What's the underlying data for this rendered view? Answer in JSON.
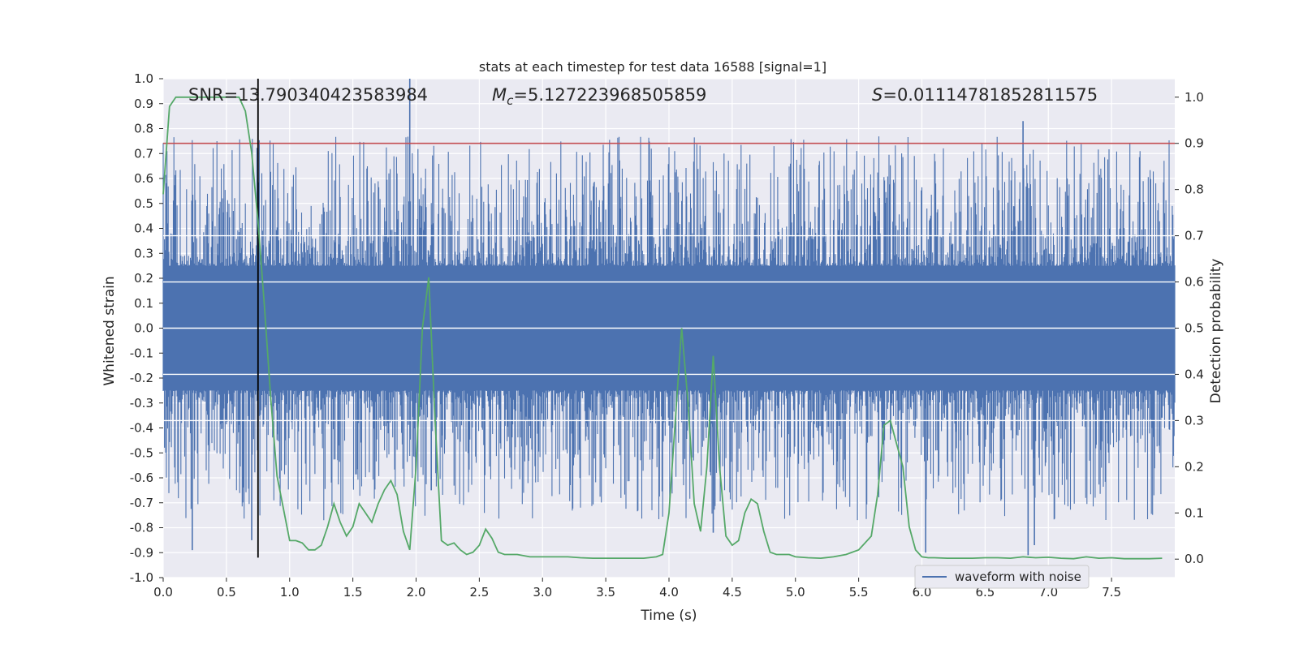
{
  "chart_data": {
    "type": "line",
    "title": "stats at each timestep for test data 16588 [signal=1]",
    "xlabel": "Time (s)",
    "ylabel_left": "Whitened strain",
    "ylabel_right": "Detection probability",
    "xlim": [
      0.0,
      8.0
    ],
    "ylim_left": [
      -1.0,
      1.0
    ],
    "ylim_right": [
      -0.04,
      1.04
    ],
    "x_ticks": [
      "0.0",
      "0.5",
      "1.0",
      "1.5",
      "2.0",
      "2.5",
      "3.0",
      "3.5",
      "4.0",
      "4.5",
      "5.0",
      "5.5",
      "6.0",
      "6.5",
      "7.0",
      "7.5"
    ],
    "y_ticks_left": [
      "-1.0",
      "-0.9",
      "-0.8",
      "-0.7",
      "-0.6",
      "-0.5",
      "-0.4",
      "-0.3",
      "-0.2",
      "-0.1",
      "0.0",
      "0.1",
      "0.2",
      "0.3",
      "0.4",
      "0.5",
      "0.6",
      "0.7",
      "0.8",
      "0.9",
      "1.0"
    ],
    "y_ticks_right": [
      "0.0",
      "0.1",
      "0.2",
      "0.3",
      "0.4",
      "0.5",
      "0.6",
      "0.7",
      "0.8",
      "0.9",
      "1.0"
    ],
    "grid": true,
    "legend": {
      "position": "bottom-right",
      "entries": [
        {
          "label": "waveform with noise",
          "color": "#4c72b0"
        }
      ]
    },
    "annotations": {
      "snr": "SNR=13.790340423583984",
      "mc_symbol": "M",
      "mc_sub": "c",
      "mc_value": "=5.127223968505859",
      "s_symbol": "S",
      "s_value": "=0.01114781852811575"
    },
    "series": [
      {
        "name": "waveform with noise",
        "axis": "left",
        "color": "#4c72b0",
        "sample_rate": 2048,
        "amplitude_band": [
          -0.35,
          0.35
        ],
        "notable_peaks": [
          {
            "x": 1.95,
            "y": 1.0
          },
          {
            "x": 6.8,
            "y": 0.83
          },
          {
            "x": 0.23,
            "y": -0.89
          },
          {
            "x": 6.84,
            "y": -0.91
          },
          {
            "x": 6.89,
            "y": -0.87
          },
          {
            "x": 6.03,
            "y": -0.9
          },
          {
            "x": 4.35,
            "y": -0.82
          },
          {
            "x": 2.12,
            "y": -0.65
          },
          {
            "x": 0.7,
            "y": -0.85
          }
        ]
      },
      {
        "name": "",
        "axis": "right",
        "color": "#55a868",
        "x": [
          0.0,
          0.05,
          0.1,
          0.15,
          0.2,
          0.25,
          0.3,
          0.35,
          0.4,
          0.45,
          0.5,
          0.55,
          0.6,
          0.65,
          0.7,
          0.75,
          0.8,
          0.85,
          0.9,
          0.95,
          1.0,
          1.05,
          1.1,
          1.15,
          1.2,
          1.25,
          1.3,
          1.35,
          1.4,
          1.45,
          1.5,
          1.55,
          1.6,
          1.65,
          1.7,
          1.75,
          1.8,
          1.85,
          1.9,
          1.95,
          2.0,
          2.05,
          2.1,
          2.15,
          2.2,
          2.25,
          2.3,
          2.35,
          2.4,
          2.45,
          2.5,
          2.55,
          2.6,
          2.65,
          2.7,
          2.75,
          2.8,
          2.9,
          3.0,
          3.1,
          3.2,
          3.3,
          3.4,
          3.5,
          3.6,
          3.7,
          3.8,
          3.9,
          3.95,
          4.0,
          4.05,
          4.1,
          4.15,
          4.2,
          4.25,
          4.3,
          4.35,
          4.4,
          4.45,
          4.5,
          4.55,
          4.6,
          4.65,
          4.7,
          4.75,
          4.8,
          4.85,
          4.9,
          4.95,
          5.0,
          5.1,
          5.2,
          5.3,
          5.4,
          5.5,
          5.6,
          5.65,
          5.7,
          5.75,
          5.8,
          5.85,
          5.9,
          5.95,
          6.0,
          6.05,
          6.1,
          6.2,
          6.3,
          6.4,
          6.5,
          6.6,
          6.7,
          6.8,
          6.9,
          7.0,
          7.1,
          7.2,
          7.3,
          7.4,
          7.5,
          7.6,
          7.7,
          7.8,
          7.9
        ],
        "values": [
          0.79,
          0.98,
          1.0,
          1.0,
          1.0,
          1.0,
          1.0,
          1.0,
          1.0,
          1.0,
          1.0,
          1.0,
          1.0,
          0.97,
          0.88,
          0.73,
          0.55,
          0.35,
          0.18,
          0.11,
          0.04,
          0.04,
          0.035,
          0.02,
          0.02,
          0.03,
          0.07,
          0.12,
          0.08,
          0.05,
          0.07,
          0.12,
          0.1,
          0.08,
          0.12,
          0.15,
          0.17,
          0.14,
          0.06,
          0.02,
          0.2,
          0.5,
          0.61,
          0.3,
          0.04,
          0.03,
          0.035,
          0.02,
          0.01,
          0.015,
          0.03,
          0.065,
          0.045,
          0.015,
          0.01,
          0.01,
          0.01,
          0.005,
          0.005,
          0.005,
          0.005,
          0.003,
          0.002,
          0.002,
          0.002,
          0.002,
          0.002,
          0.005,
          0.01,
          0.1,
          0.3,
          0.5,
          0.34,
          0.12,
          0.06,
          0.2,
          0.44,
          0.2,
          0.05,
          0.03,
          0.04,
          0.1,
          0.13,
          0.12,
          0.06,
          0.015,
          0.01,
          0.01,
          0.01,
          0.005,
          0.003,
          0.002,
          0.005,
          0.01,
          0.02,
          0.05,
          0.14,
          0.29,
          0.3,
          0.25,
          0.2,
          0.07,
          0.02,
          0.005,
          0.003,
          0.003,
          0.002,
          0.002,
          0.002,
          0.003,
          0.003,
          0.002,
          0.005,
          0.003,
          0.004,
          0.002,
          0.001,
          0.005,
          0.002,
          0.003,
          0.001,
          0.001,
          0.001,
          0.002
        ]
      }
    ],
    "threshold_line": {
      "axis": "right",
      "y": 0.9,
      "color": "#c44e52"
    },
    "marker_line": {
      "axis": "left",
      "x": 0.75,
      "y_range": [
        -0.92,
        1.0
      ],
      "color": "#000000"
    }
  }
}
